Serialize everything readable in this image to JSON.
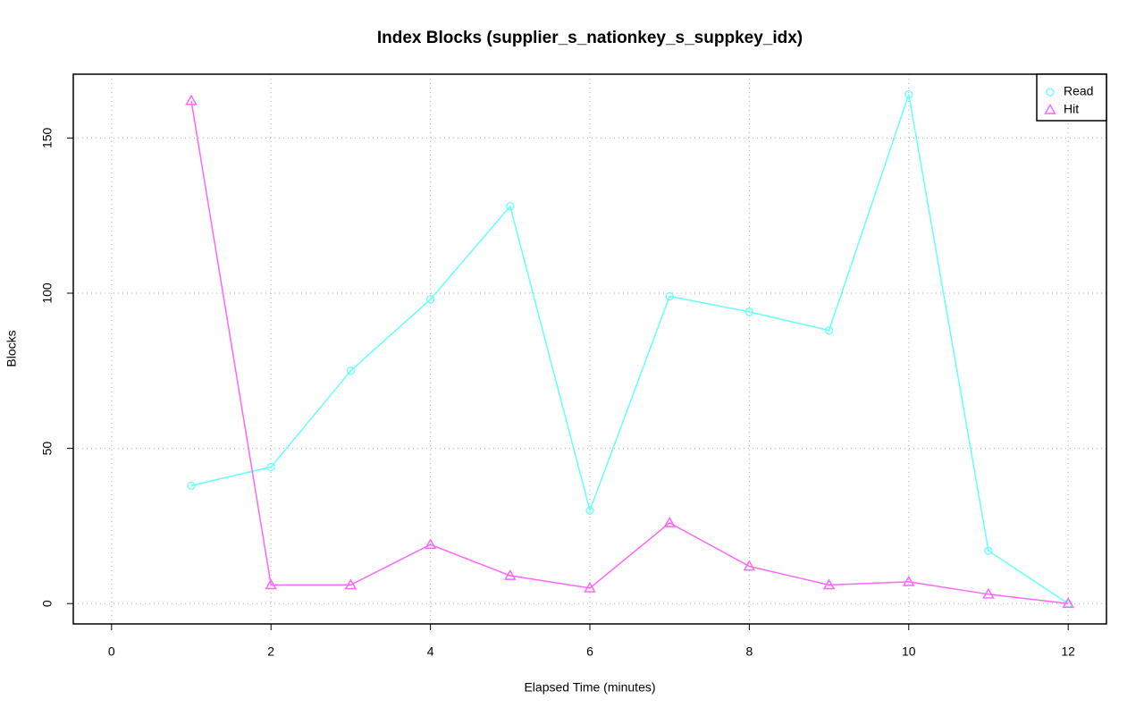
{
  "chart_data": {
    "type": "line",
    "title": "Index Blocks (supplier_s_nationkey_s_suppkey_idx)",
    "x_label": "Elapsed Time (minutes)",
    "y_label": "Blocks",
    "x": [
      1,
      2,
      3,
      4,
      5,
      6,
      7,
      8,
      9,
      10,
      11,
      12
    ],
    "series": [
      {
        "name": "Read",
        "color": "#66ffff",
        "marker": "circle",
        "values": [
          38,
          44,
          75,
          98,
          128,
          30,
          99,
          94,
          88,
          164,
          17,
          0
        ]
      },
      {
        "name": "Hit",
        "color": "#ff66ff",
        "marker": "triangle",
        "values": [
          162,
          6,
          6,
          19,
          9,
          5,
          26,
          12,
          6,
          7,
          3,
          0
        ]
      }
    ],
    "xlim": [
      -0.48,
      12.48
    ],
    "xticks": [
      0,
      2,
      4,
      6,
      8,
      10,
      12
    ],
    "ylim": [
      -6.56,
      170.56
    ],
    "yticks": [
      0,
      50,
      100,
      150
    ],
    "grid": true,
    "legend": "topright"
  }
}
